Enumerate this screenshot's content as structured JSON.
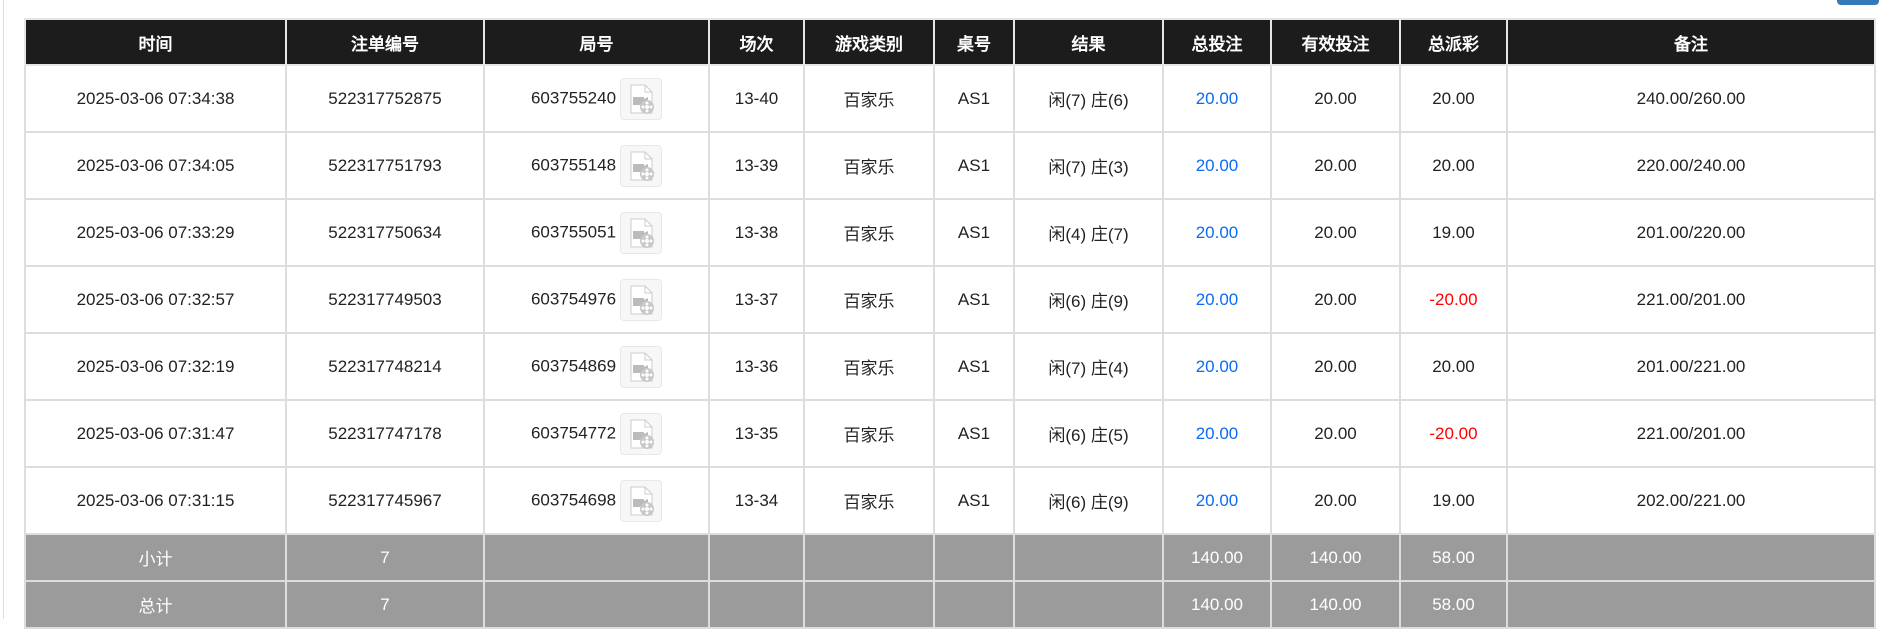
{
  "columns": [
    "时间",
    "注单编号",
    "局号",
    "场次",
    "游戏类别",
    "桌号",
    "结果",
    "总投注",
    "有效投注",
    "总派彩",
    "备注"
  ],
  "rows": [
    {
      "time": "2025-03-06 07:34:38",
      "bet_id": "522317752875",
      "round": "603755240",
      "session": "13-40",
      "game": "百家乐",
      "table": "AS1",
      "result": "闲(7) 庄(6)",
      "total_bet": "20.00",
      "valid_bet": "20.00",
      "payout": "20.00",
      "payout_negative": false,
      "note": "240.00/260.00"
    },
    {
      "time": "2025-03-06 07:34:05",
      "bet_id": "522317751793",
      "round": "603755148",
      "session": "13-39",
      "game": "百家乐",
      "table": "AS1",
      "result": "闲(7) 庄(3)",
      "total_bet": "20.00",
      "valid_bet": "20.00",
      "payout": "20.00",
      "payout_negative": false,
      "note": "220.00/240.00"
    },
    {
      "time": "2025-03-06 07:33:29",
      "bet_id": "522317750634",
      "round": "603755051",
      "session": "13-38",
      "game": "百家乐",
      "table": "AS1",
      "result": "闲(4) 庄(7)",
      "total_bet": "20.00",
      "valid_bet": "20.00",
      "payout": "19.00",
      "payout_negative": false,
      "note": "201.00/220.00"
    },
    {
      "time": "2025-03-06 07:32:57",
      "bet_id": "522317749503",
      "round": "603754976",
      "session": "13-37",
      "game": "百家乐",
      "table": "AS1",
      "result": "闲(6) 庄(9)",
      "total_bet": "20.00",
      "valid_bet": "20.00",
      "payout": "-20.00",
      "payout_negative": true,
      "note": "221.00/201.00"
    },
    {
      "time": "2025-03-06 07:32:19",
      "bet_id": "522317748214",
      "round": "603754869",
      "session": "13-36",
      "game": "百家乐",
      "table": "AS1",
      "result": "闲(7) 庄(4)",
      "total_bet": "20.00",
      "valid_bet": "20.00",
      "payout": "20.00",
      "payout_negative": false,
      "note": "201.00/221.00"
    },
    {
      "time": "2025-03-06 07:31:47",
      "bet_id": "522317747178",
      "round": "603754772",
      "session": "13-35",
      "game": "百家乐",
      "table": "AS1",
      "result": "闲(6) 庄(5)",
      "total_bet": "20.00",
      "valid_bet": "20.00",
      "payout": "-20.00",
      "payout_negative": true,
      "note": "221.00/201.00"
    },
    {
      "time": "2025-03-06 07:31:15",
      "bet_id": "522317745967",
      "round": "603754698",
      "session": "13-34",
      "game": "百家乐",
      "table": "AS1",
      "result": "闲(6) 庄(9)",
      "total_bet": "20.00",
      "valid_bet": "20.00",
      "payout": "19.00",
      "payout_negative": false,
      "note": "202.00/221.00"
    }
  ],
  "summary": [
    {
      "label": "小计",
      "count": "7",
      "total_bet": "140.00",
      "valid_bet": "140.00",
      "payout": "58.00"
    },
    {
      "label": "总计",
      "count": "7",
      "total_bet": "140.00",
      "valid_bet": "140.00",
      "payout": "58.00"
    }
  ],
  "colors": {
    "header_bg": "#1c1c1c",
    "total_bet": "#0a6cf5",
    "negative": "#ff0000",
    "summary_bg": "#9b9b9b"
  },
  "icons": {
    "round_video": "video-replay-icon"
  }
}
